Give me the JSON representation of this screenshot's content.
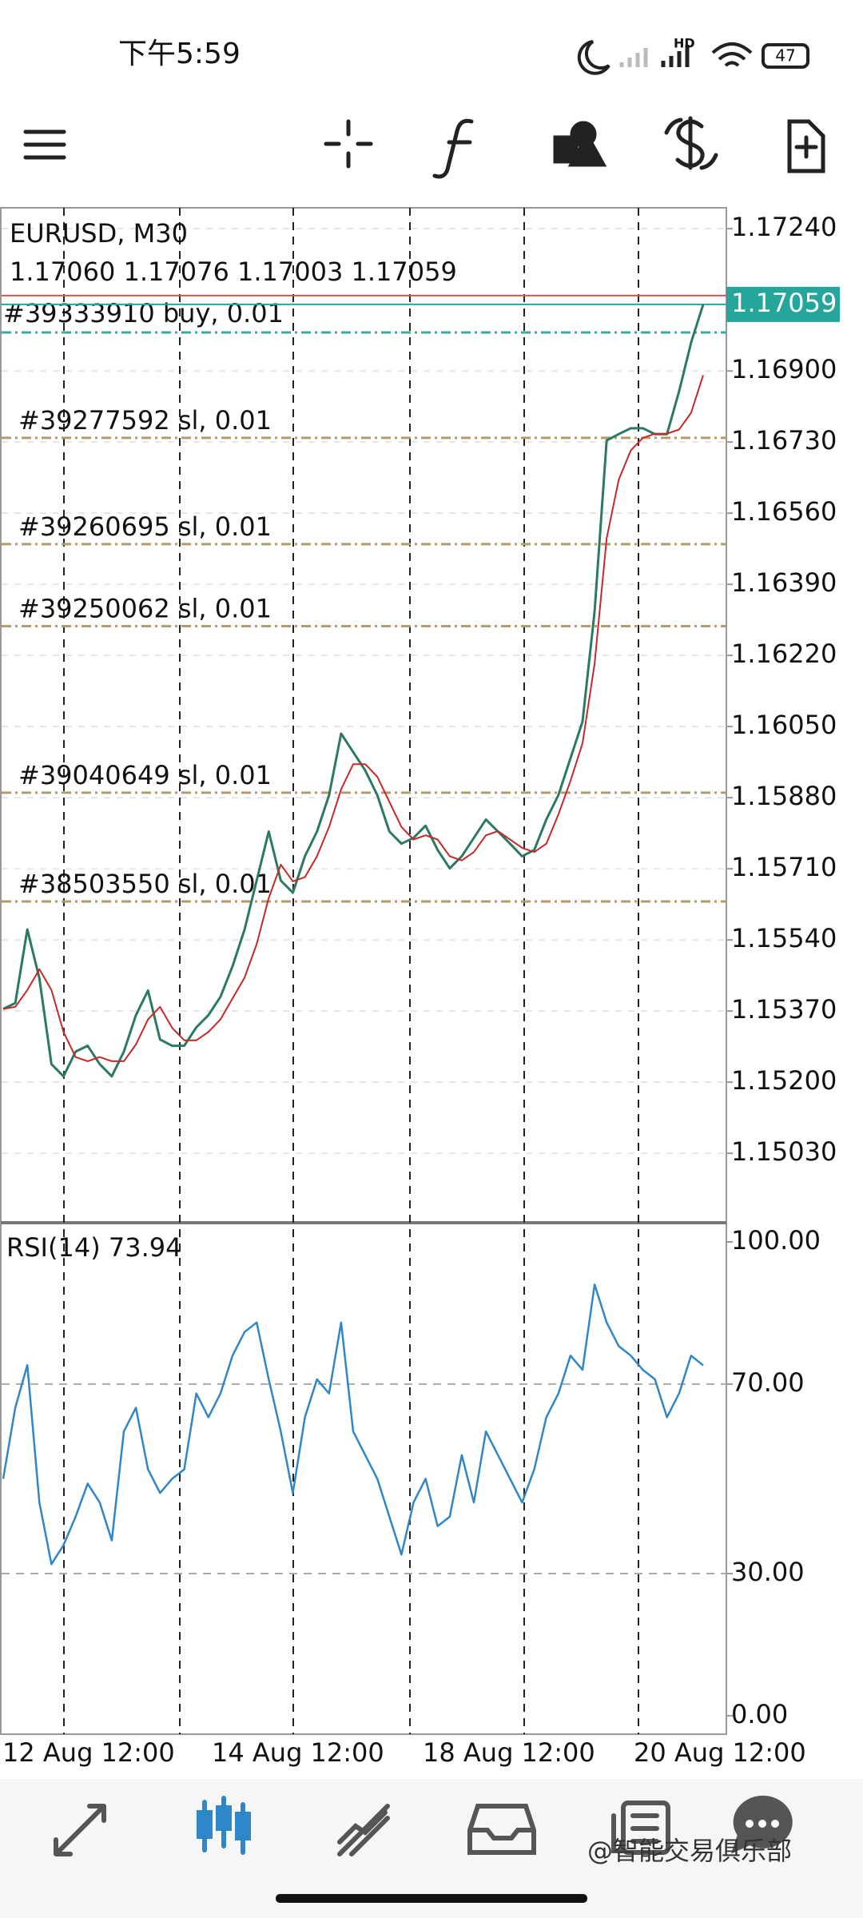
{
  "status_bar": {
    "time": "下午5:59",
    "network": "HD",
    "battery": "47"
  },
  "chart_data": {
    "type": "line",
    "symbol": "EURUSD, M30",
    "ohlc": "1.17060 1.17076 1.17003 1.17059",
    "x_labels": [
      "12 Aug 12:00",
      "14 Aug 12:00",
      "18 Aug 12:00",
      "20 Aug 12:00"
    ],
    "price": {
      "color": "#2b7a5f",
      "values": [
        1.15375,
        1.15389,
        1.15565,
        1.15448,
        1.15243,
        1.15214,
        1.15273,
        1.15287,
        1.15243,
        1.15214,
        1.15273,
        1.1536,
        1.15419,
        1.15302,
        1.15287,
        1.15287,
        1.15331,
        1.1536,
        1.15404,
        1.15477,
        1.15565,
        1.15682,
        1.15799,
        1.15682,
        1.15653,
        1.1574,
        1.15799,
        1.15886,
        1.16033,
        1.15989,
        1.15945,
        1.15886,
        1.15799,
        1.1577,
        1.15784,
        1.15813,
        1.15755,
        1.15711,
        1.1574,
        1.15784,
        1.15828,
        1.15799,
        1.1577,
        1.1574,
        1.15755,
        1.15828,
        1.15886,
        1.15974,
        1.16062,
        1.16325,
        1.16734,
        1.16749,
        1.16763,
        1.16763,
        1.16749,
        1.16749,
        1.16851,
        1.16968,
        1.17059
      ]
    },
    "ma": {
      "color": "#c62828",
      "values": [
        1.15375,
        1.1538,
        1.1542,
        1.1547,
        1.1542,
        1.1532,
        1.1526,
        1.1525,
        1.1526,
        1.1525,
        1.1525,
        1.1529,
        1.1535,
        1.1538,
        1.1533,
        1.153,
        1.153,
        1.1532,
        1.1535,
        1.154,
        1.1545,
        1.1553,
        1.1564,
        1.1572,
        1.1568,
        1.1569,
        1.1574,
        1.1581,
        1.159,
        1.1596,
        1.1596,
        1.1593,
        1.1587,
        1.1581,
        1.1578,
        1.1579,
        1.1578,
        1.1574,
        1.1573,
        1.1575,
        1.1579,
        1.158,
        1.1578,
        1.1576,
        1.1575,
        1.1577,
        1.1584,
        1.1592,
        1.1601,
        1.162,
        1.165,
        1.1664,
        1.1671,
        1.1674,
        1.1675,
        1.1675,
        1.1676,
        1.168,
        1.1689
      ]
    },
    "ylim": [
      1.14864,
      1.1729
    ],
    "yticks": [
      {
        "value": 1.1724,
        "label": "1.17240"
      },
      {
        "value": 1.169,
        "label": "1.16900"
      },
      {
        "value": 1.1673,
        "label": "1.16730"
      },
      {
        "value": 1.1656,
        "label": "1.16560"
      },
      {
        "value": 1.1639,
        "label": "1.16390"
      },
      {
        "value": 1.1622,
        "label": "1.16220"
      },
      {
        "value": 1.1605,
        "label": "1.16050"
      },
      {
        "value": 1.1588,
        "label": "1.15880"
      },
      {
        "value": 1.1571,
        "label": "1.15710"
      },
      {
        "value": 1.1554,
        "label": "1.15540"
      },
      {
        "value": 1.1537,
        "label": "1.15370"
      },
      {
        "value": 1.152,
        "label": "1.15200"
      },
      {
        "value": 1.1503,
        "label": "1.15030"
      }
    ],
    "grid": true,
    "bid": {
      "value": 1.17059,
      "label": "1.17059",
      "color": "#26a69a"
    },
    "ask": 1.1708,
    "orders": [
      {
        "label": "#39333910 buy, 0.01",
        "price": 1.16992,
        "color": "#3aa9a0"
      },
      {
        "label": "#39277592 sl, 0.01",
        "price": 1.1674,
        "color": "#b39b6e"
      },
      {
        "label": "#39260695 sl, 0.01",
        "price": 1.16486,
        "color": "#b39b6e"
      },
      {
        "label": "#39250062 sl, 0.01",
        "price": 1.1629,
        "color": "#b39b6e"
      },
      {
        "label": "#39040649 sl, 0.01",
        "price": 1.15892,
        "color": "#b39b6e"
      },
      {
        "label": "#38503550 sl, 0.01",
        "price": 1.15632,
        "color": "#b39b6e"
      }
    ],
    "rsi": {
      "title": "RSI(14) 73.94",
      "color": "#2f86c8",
      "values": [
        50,
        65,
        74,
        45,
        32,
        36,
        42,
        49,
        45,
        37,
        60,
        65,
        52,
        47,
        50,
        52,
        68,
        63,
        68,
        76,
        81,
        83,
        71,
        60,
        47,
        63,
        71,
        68,
        83,
        60,
        55,
        50,
        42,
        34,
        45,
        50,
        40,
        42,
        55,
        45,
        60,
        55,
        50,
        45,
        52,
        63,
        68,
        76,
        73,
        91,
        83,
        78,
        76,
        73,
        71,
        63,
        68,
        76,
        73.94
      ],
      "ylim": [
        -3.9,
        104.05
      ],
      "yticks": [
        {
          "value": 100,
          "label": "100.00"
        },
        {
          "value": 70,
          "label": "70.00"
        },
        {
          "value": 30,
          "label": "30.00"
        },
        {
          "value": 0,
          "label": "0.00"
        }
      ],
      "levels": [
        70,
        30
      ]
    }
  },
  "watermark": "@智能交易俱乐部"
}
